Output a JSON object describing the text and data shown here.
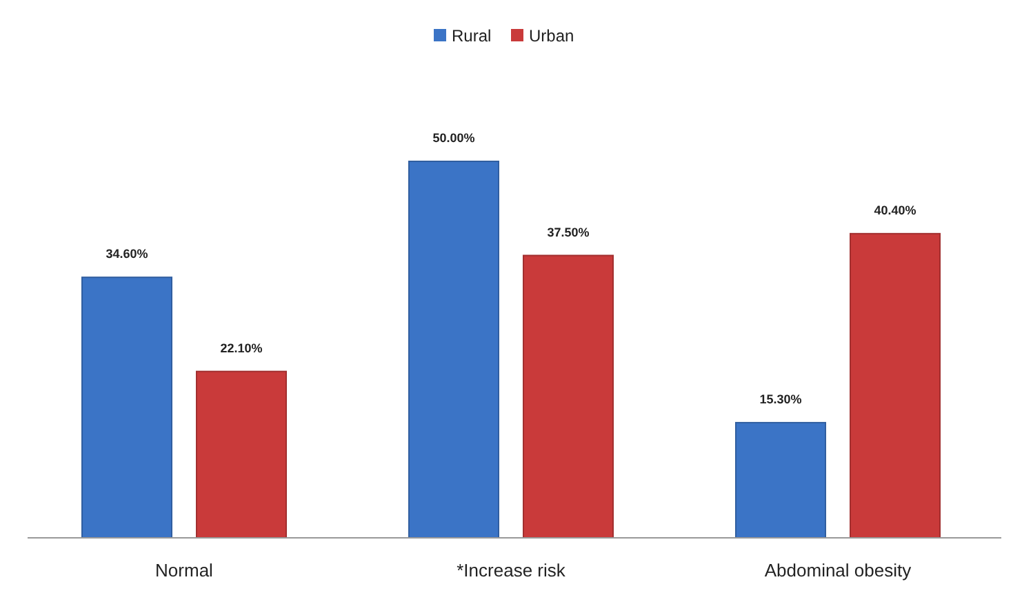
{
  "chart_data": {
    "type": "bar",
    "categories": [
      "Normal",
      "*Increase risk",
      "Abdominal obesity"
    ],
    "series": [
      {
        "name": "Rural",
        "color": "#3b74c6",
        "values": [
          34.6,
          50.0,
          15.3
        ],
        "value_labels": [
          "34.60%",
          "50.00%",
          "15.30%"
        ]
      },
      {
        "name": "Urban",
        "color": "#c93a3a",
        "values": [
          22.1,
          37.5,
          40.4
        ],
        "value_labels": [
          "22.10%",
          "37.50%",
          "40.40%"
        ]
      }
    ],
    "legend": "top"
  }
}
